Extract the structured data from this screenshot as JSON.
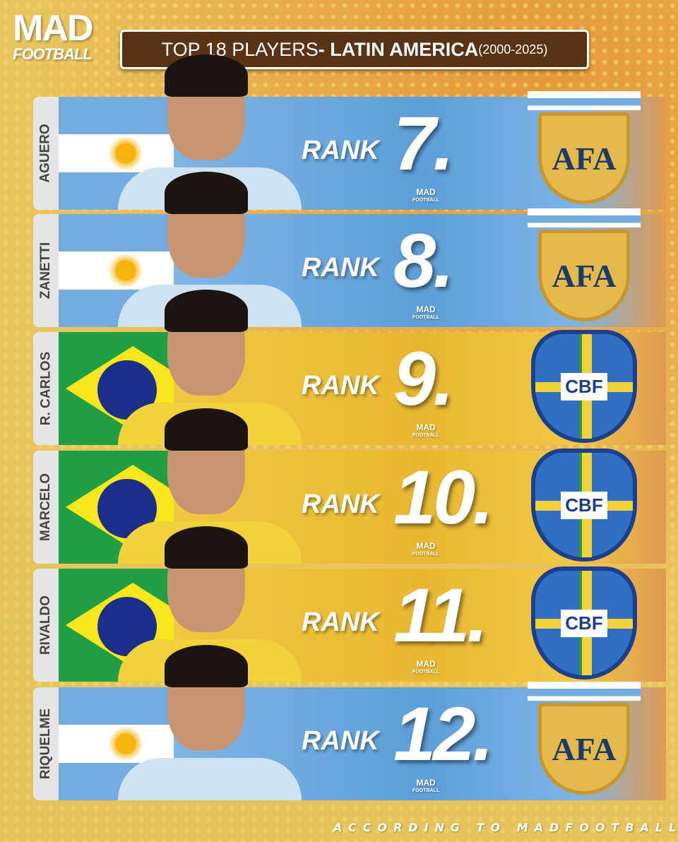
{
  "logo": {
    "line1": "MAD",
    "line2": "FOOTBALL"
  },
  "title": {
    "prefix": "TOP 18 PLAYERS",
    "main": "- LATIN AMERICA",
    "years": "(2000-2025)"
  },
  "rank_label": "RANK",
  "watermark": {
    "line1": "MAD",
    "line2": "FOOTBALL"
  },
  "colors": {
    "title_bg": "#5a3315",
    "argentina_blue": "#74acdf",
    "brazil_green": "#229e45",
    "brazil_yellow": "#f8e71c"
  },
  "players": [
    {
      "name": "AGUERO",
      "rank": "7.",
      "country": "argentina",
      "federation": "AFA"
    },
    {
      "name": "ZANETTI",
      "rank": "8.",
      "country": "argentina",
      "federation": "AFA"
    },
    {
      "name": "R. CARLOS",
      "rank": "9.",
      "country": "brazil",
      "federation": "CBF"
    },
    {
      "name": "MARCELO",
      "rank": "10.",
      "country": "brazil",
      "federation": "CBF"
    },
    {
      "name": "RIVALDO",
      "rank": "11.",
      "country": "brazil",
      "federation": "CBF"
    },
    {
      "name": "RIQUELME",
      "rank": "12.",
      "country": "argentina",
      "federation": "AFA"
    }
  ],
  "footer": "ACCORDING TO MADFOOTBALL"
}
